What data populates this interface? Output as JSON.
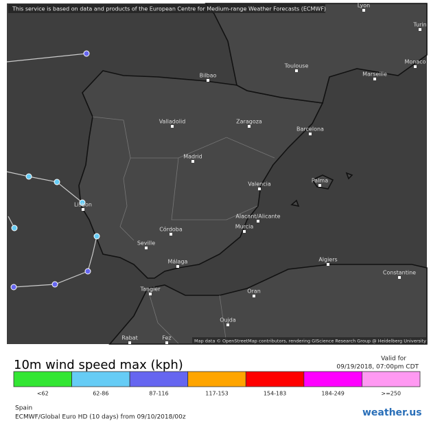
{
  "map": {
    "banner": "This service is based on data and products of the European Centre for Medium-range Weather Forecasts (ECMWF)",
    "cities": [
      "Lyon",
      "Turin",
      "Toulouse",
      "Monaco",
      "Bilbao",
      "Marseille",
      "Valladolid",
      "Zaragoza",
      "Barcelona",
      "Madrid",
      "Palma",
      "Valencia",
      "Lisbon",
      "Alacant/Alicante",
      "Murcia",
      "Córdoba",
      "Seville",
      "Málaga",
      "Algiers",
      "Constantine",
      "Tangier",
      "Oran",
      "Oujda",
      "Rabat",
      "Fez"
    ],
    "attribution": "Map data © OpenStreetMap contributors, rendering GIScience Research Group @ Heidelberg University"
  },
  "legend": {
    "title": "10m wind speed max (kph)",
    "valid_label": "Valid for",
    "valid_time": "09/19/2018, 07:00pm CDT",
    "bins": [
      {
        "label": "<62",
        "color": "#33e633"
      },
      {
        "label": "62-86",
        "color": "#66ccf5"
      },
      {
        "label": "87-116",
        "color": "#6666f0"
      },
      {
        "label": "117-153",
        "color": "#ffa500"
      },
      {
        "label": "154-183",
        "color": "#ff0000"
      },
      {
        "label": "184-249",
        "color": "#ff00ff"
      },
      {
        "label": ">=250",
        "color": "#ff99f2"
      }
    ],
    "region": "Spain",
    "model": "ECMWF/Global Euro HD (10 days) from 09/10/2018/00z",
    "logo": "weather.us"
  }
}
